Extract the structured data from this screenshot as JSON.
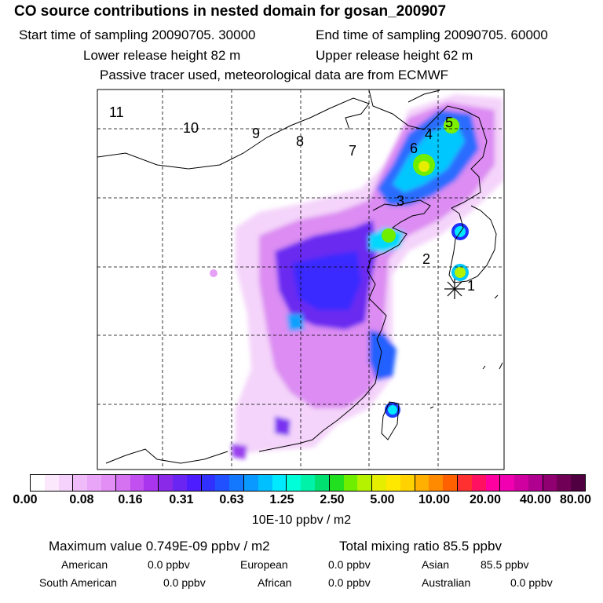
{
  "header": {
    "title": "CO  source contributions in nested domain for gosan_200907",
    "start_time": "Start time of sampling 20090705. 30000",
    "end_time": "End time of sampling 20090705. 60000",
    "lower_height": "Lower release height   82 m",
    "upper_height": "Upper release height   62 m",
    "tracer_note": "Passive tracer used, meteorological data are from ECMWF"
  },
  "map": {
    "trajectory_labels": [
      "1",
      "2",
      "3",
      "4",
      "5",
      "6",
      "7",
      "8",
      "9",
      "10",
      "11"
    ],
    "receptor_marker": "asterisk"
  },
  "colorbar": {
    "colors": [
      "#ffffff",
      "#fbe8fd",
      "#f5d2fb",
      "#efbcf9",
      "#e9a5f7",
      "#e28ef4",
      "#d472f2",
      "#c24fef",
      "#a936ee",
      "#8a2ae8",
      "#6a25f3",
      "#4d1cff",
      "#3030ff",
      "#2050ff",
      "#1478ff",
      "#0a9aff",
      "#00c0ff",
      "#00eaff",
      "#00ffd8",
      "#00f2a8",
      "#00e070",
      "#20e020",
      "#70ee00",
      "#b4f200",
      "#e6ee00",
      "#ffe800",
      "#ffd200",
      "#ffb000",
      "#ff8a00",
      "#ff6000",
      "#ff3030",
      "#ff1060",
      "#ff00a0",
      "#f000b0",
      "#d000a0",
      "#b00090",
      "#900070",
      "#700055",
      "#500040"
    ],
    "ticks": [
      "0.00",
      "0.08",
      "0.16",
      "0.31",
      "0.63",
      "1.25",
      "2.50",
      "5.00",
      "10.00",
      "20.00",
      "40.00",
      "80.00"
    ],
    "units": "10E-10 ppbv / m2"
  },
  "summary": {
    "max_value": "Maximum value  0.749E-09 ppbv / m2",
    "total_mixing": "Total mixing ratio       85.5 ppbv"
  },
  "regions": [
    {
      "name": "American",
      "value": "0.0 ppbv"
    },
    {
      "name": "European",
      "value": "0.0 ppbv"
    },
    {
      "name": "Asian",
      "value": "85.5 ppbv"
    },
    {
      "name": "South American",
      "value": "0.0 ppbv"
    },
    {
      "name": "African",
      "value": "0.0 ppbv"
    },
    {
      "name": "Australian",
      "value": "0.0 ppbv"
    }
  ]
}
